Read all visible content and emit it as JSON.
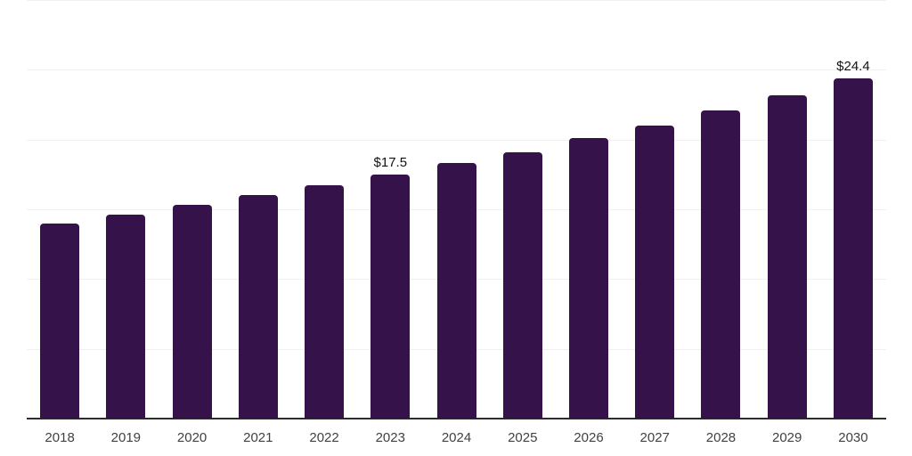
{
  "chart_data": {
    "type": "bar",
    "title": "",
    "xlabel": "",
    "ylabel": "",
    "categories": [
      "2018",
      "2019",
      "2020",
      "2021",
      "2022",
      "2023",
      "2024",
      "2025",
      "2026",
      "2027",
      "2028",
      "2029",
      "2030"
    ],
    "values": [
      14.0,
      14.6,
      15.3,
      16.0,
      16.7,
      17.5,
      18.3,
      19.1,
      20.1,
      21.0,
      22.1,
      23.2,
      24.4
    ],
    "data_labels": {
      "2023": "$17.5",
      "2030": "$24.4"
    },
    "value_prefix": "$",
    "ylim": [
      0,
      30
    ],
    "gridline_step": 5,
    "grid": "horizontal",
    "legend_position": "none",
    "bar_color": "#35124a"
  },
  "colors": {
    "background": "#ffffff",
    "bar": "#35124a",
    "axis_line": "#2d2d2d",
    "gridline": "#f0f0f3",
    "tick_label": "#414141",
    "value_label": "#111111"
  }
}
